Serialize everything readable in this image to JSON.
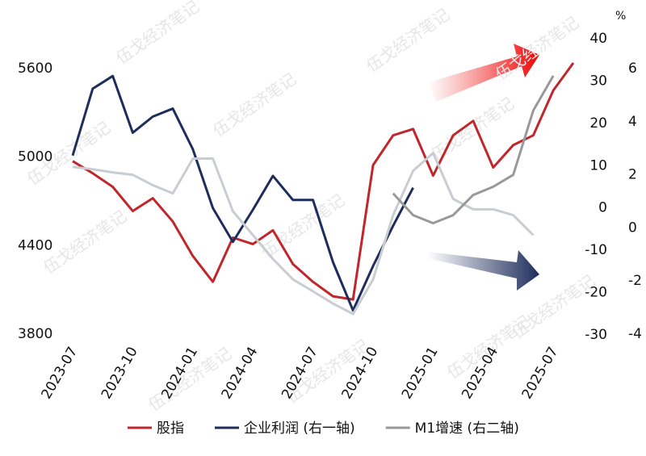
{
  "chart_data": {
    "type": "line",
    "x": [
      "2023-07",
      "2023-08",
      "2023-09",
      "2023-10",
      "2023-11",
      "2023-12",
      "2024-01",
      "2024-02",
      "2024-03",
      "2024-04",
      "2024-05",
      "2024-06",
      "2024-07",
      "2024-08",
      "2024-09",
      "2024-10",
      "2024-11",
      "2024-12",
      "2025-01",
      "2025-02",
      "2025-03",
      "2025-04",
      "2025-05",
      "2025-06",
      "2025-07",
      "2025-08"
    ],
    "xticks": [
      {
        "value": 0,
        "label": "2023-07"
      },
      {
        "value": 3,
        "label": "2023-10"
      },
      {
        "value": 6,
        "label": "2024-01"
      },
      {
        "value": 9,
        "label": "2024-04"
      },
      {
        "value": 12,
        "label": "2024-07"
      },
      {
        "value": 15,
        "label": "2024-10"
      },
      {
        "value": 18,
        "label": "2025-01"
      },
      {
        "value": 21,
        "label": "2025-04"
      },
      {
        "value": 24,
        "label": "2025-07"
      }
    ],
    "ylim": [
      3800,
      5600
    ],
    "yticks": [
      3800,
      4400,
      5000,
      5600
    ],
    "y2lim": [
      -30,
      40
    ],
    "y2ticks": [
      -30,
      -20,
      -10,
      0,
      10,
      20,
      30,
      40
    ],
    "y2unit": "%",
    "y3lim": [
      -4,
      6
    ],
    "y3ticks": [
      -4,
      -2,
      0,
      2,
      4,
      6
    ],
    "watermark": "伍戈经济笔记",
    "series": [
      {
        "name": "股指",
        "color": "#c0272d",
        "values": [
          4967,
          4885,
          4793,
          4629,
          4716,
          4558,
          4324,
          4149,
          4449,
          4405,
          4498,
          4269,
          4149,
          4051,
          4029,
          4940,
          5142,
          5185,
          4869,
          5142,
          5240,
          4924,
          5076,
          5142,
          5447,
          5633
        ]
      },
      {
        "name": "企业利润 (右一轴)",
        "color": "#1f2d5c",
        "axis": "y2",
        "values": [
          12.2,
          28,
          31,
          17.6,
          21.4,
          23.3,
          13.7,
          -0.2,
          -8.2,
          -0.6,
          7.4,
          1.7,
          1.7,
          -13,
          -24.4,
          -13.9,
          -4.4,
          4.6,
          null,
          null,
          null,
          null,
          null,
          null,
          null,
          null
        ]
      },
      {
        "color": "#c9cdd3",
        "axis": "y3",
        "values": [
          2.27,
          2.18,
          2.06,
          1.97,
          1.58,
          1.27,
          2.58,
          2.58,
          0.6,
          -0.3,
          -1.2,
          -1.97,
          -2.42,
          -2.88,
          -3.27,
          -1.97,
          0.45,
          2.12,
          2.79,
          1.06,
          0.67,
          0.67,
          0.45,
          -0.3,
          null,
          null
        ]
      },
      {
        "name": "M1增速 (右二轴)",
        "color": "#999999",
        "axis": "y3",
        "values": [
          null,
          null,
          null,
          null,
          null,
          null,
          null,
          null,
          null,
          null,
          null,
          null,
          null,
          null,
          null,
          null,
          1.27,
          0.45,
          0.15,
          0.45,
          1.21,
          1.52,
          1.97,
          4.39,
          5.7,
          null
        ]
      }
    ]
  }
}
